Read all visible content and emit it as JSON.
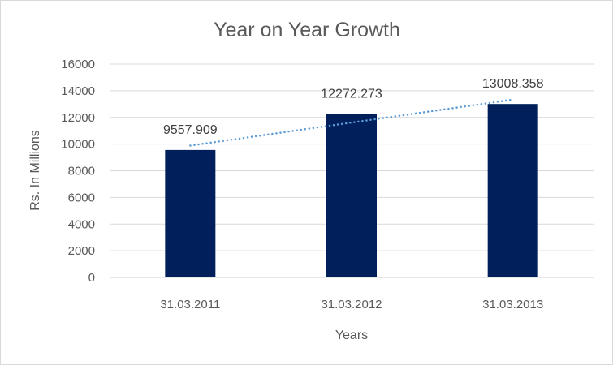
{
  "chart_data": {
    "type": "bar",
    "title": "Year on Year Growth",
    "xlabel": "Years",
    "ylabel": "Rs. In Millions",
    "categories": [
      "31.03.2011",
      "31.03.2012",
      "31.03.2013"
    ],
    "values": [
      9557.909,
      12272.273,
      13008.358
    ],
    "data_labels": [
      "9557.909",
      "12272.273",
      "13008.358"
    ],
    "ylim": [
      0,
      16000
    ],
    "yticks": [
      0,
      2000,
      4000,
      6000,
      8000,
      10000,
      12000,
      14000,
      16000
    ],
    "grid": true,
    "trendline": {
      "type": "linear",
      "style": "dotted",
      "color": "#5b9bd5"
    },
    "bar_color": "#001f5b",
    "legend": "none"
  }
}
